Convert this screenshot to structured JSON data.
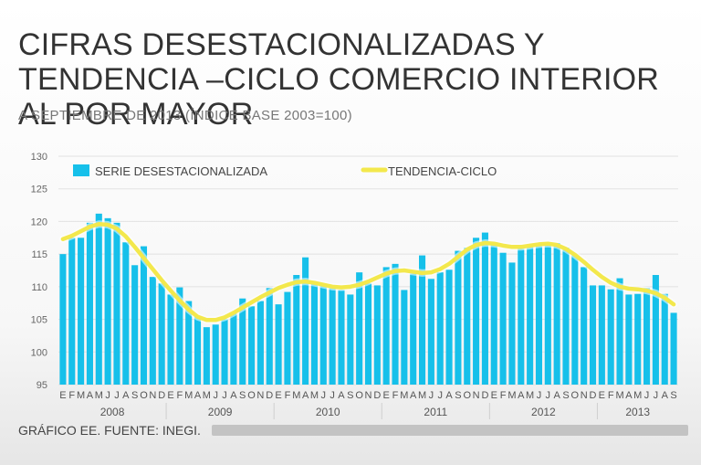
{
  "header": {
    "title": "CIFRAS DESESTACIONALIZADAS Y TENDENCIA –CICLO COMERCIO INTERIOR AL POR MAYOR",
    "subtitle": "A SEPTIEMBRE DE 2013 (ÍNDICE BASE 2003=100)"
  },
  "footer": {
    "source": "GRÁFICO EE. FUENTE: INEGI."
  },
  "colors": {
    "bars": "#16c0ea",
    "trend": "#f3e84c",
    "text": "#555555"
  },
  "chart_data": {
    "type": "bar",
    "title": "CIFRAS DESESTACIONALIZADAS Y TENDENCIA –CICLO COMERCIO INTERIOR AL POR MAYOR",
    "subtitle": "A SEPTIEMBRE DE 2013 (ÍNDICE BASE 2003=100)",
    "ylim": [
      95,
      130
    ],
    "yticks": [
      95,
      100,
      105,
      110,
      115,
      120,
      125,
      130
    ],
    "grid": true,
    "legend_position": "top",
    "month_labels": [
      "E",
      "F",
      "M",
      "A",
      "M",
      "J",
      "J",
      "A",
      "S",
      "O",
      "N",
      "D",
      "E",
      "F",
      "M",
      "A",
      "M",
      "J",
      "J",
      "A",
      "S",
      "O",
      "N",
      "D",
      "E",
      "F",
      "M",
      "A",
      "M",
      "J",
      "J",
      "A",
      "S",
      "O",
      "N",
      "D",
      "E",
      "F",
      "M",
      "A",
      "M",
      "J",
      "J",
      "A",
      "S",
      "O",
      "N",
      "D",
      "E",
      "F",
      "M",
      "A",
      "M",
      "J",
      "J",
      "A",
      "S",
      "O",
      "N",
      "D",
      "E",
      "F",
      "M",
      "A",
      "M",
      "J",
      "J",
      "A",
      "S"
    ],
    "years": [
      {
        "label": "2008",
        "start": 0,
        "count": 12
      },
      {
        "label": "2009",
        "start": 12,
        "count": 12
      },
      {
        "label": "2010",
        "start": 24,
        "count": 12
      },
      {
        "label": "2011",
        "start": 36,
        "count": 12
      },
      {
        "label": "2012",
        "start": 48,
        "count": 12
      },
      {
        "label": "2013",
        "start": 60,
        "count": 9
      }
    ],
    "series": [
      {
        "name": "SERIE DESESTACIONALIZADA",
        "type": "bar",
        "values": [
          115.0,
          117.5,
          117.5,
          119.8,
          121.2,
          120.5,
          119.8,
          116.8,
          113.3,
          116.2,
          111.5,
          110.5,
          108.8,
          109.9,
          107.8,
          105.5,
          103.8,
          104.2,
          105.0,
          106.0,
          108.2,
          107.0,
          107.8,
          109.8,
          107.3,
          109.2,
          111.8,
          114.5,
          110.5,
          110.2,
          109.8,
          109.5,
          108.8,
          112.2,
          110.5,
          110.2,
          113.0,
          113.5,
          109.5,
          112.0,
          114.8,
          111.2,
          112.2,
          112.6,
          115.5,
          116.0,
          117.5,
          118.3,
          116.8,
          115.2,
          113.7,
          115.8,
          116.5,
          116.2,
          116.5,
          116.7,
          116.0,
          114.8,
          113.0,
          110.2,
          110.2,
          109.6,
          111.3,
          108.8,
          108.9,
          109.8,
          111.8,
          108.9,
          106.0
        ]
      },
      {
        "name": "TENDENCIA-CICLO",
        "type": "line",
        "values": [
          117.3,
          117.8,
          118.5,
          119.2,
          119.6,
          119.5,
          118.9,
          117.7,
          116.1,
          114.4,
          112.7,
          111.0,
          109.4,
          107.9,
          106.5,
          105.4,
          104.9,
          104.9,
          105.3,
          106.0,
          106.8,
          107.6,
          108.4,
          109.1,
          109.8,
          110.3,
          110.7,
          110.8,
          110.6,
          110.3,
          110.0,
          109.9,
          110.0,
          110.3,
          110.8,
          111.4,
          112.0,
          112.4,
          112.5,
          112.3,
          112.1,
          112.2,
          112.7,
          113.5,
          114.6,
          115.7,
          116.4,
          116.7,
          116.6,
          116.3,
          116.1,
          116.1,
          116.3,
          116.5,
          116.6,
          116.4,
          115.8,
          114.9,
          113.8,
          112.6,
          111.5,
          110.6,
          110.0,
          109.7,
          109.6,
          109.4,
          109.0,
          108.3,
          107.3
        ]
      }
    ]
  }
}
